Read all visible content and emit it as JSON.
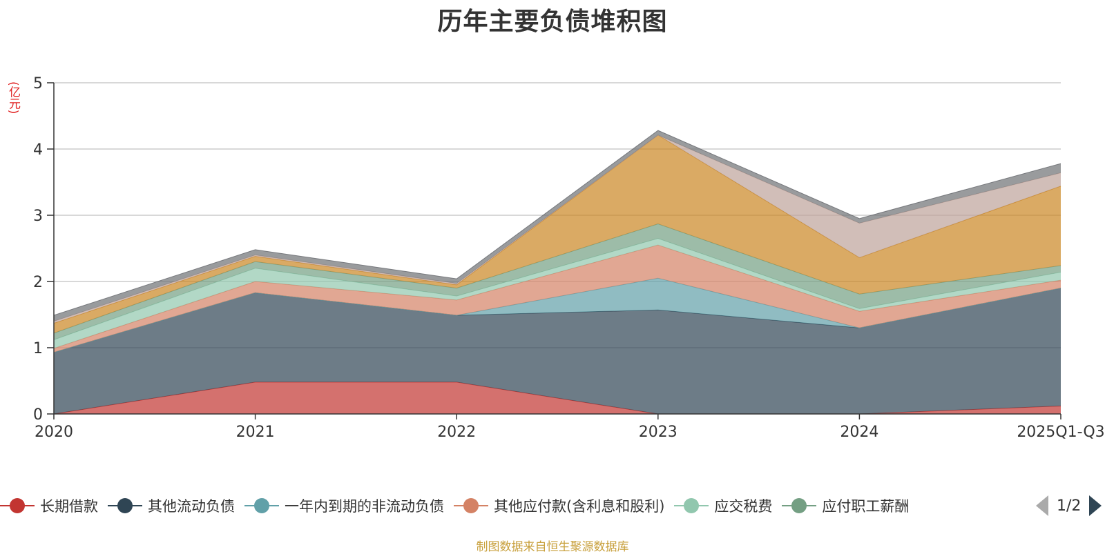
{
  "chart_data": {
    "type": "area",
    "stacked": true,
    "title": "历年主要负债堆积图",
    "ylabel": "(亿元)",
    "xlabel": "",
    "categories": [
      "2020",
      "2021",
      "2022",
      "2023",
      "2024",
      "2025Q1-Q3"
    ],
    "ylim": [
      0,
      5
    ],
    "yticks": [
      0,
      1,
      2,
      3,
      4,
      5
    ],
    "grid": true,
    "series": [
      {
        "name": "长期借款",
        "color": "#c23531",
        "values": [
          0.0,
          0.48,
          0.48,
          0.0,
          0.0,
          0.12
        ]
      },
      {
        "name": "其他流动负债",
        "color": "#2f4554",
        "values": [
          0.93,
          1.35,
          1.01,
          1.57,
          1.3,
          1.78
        ]
      },
      {
        "name": "一年内到期的非流动负债",
        "color": "#61a0a8",
        "values": [
          0.0,
          0.0,
          0.0,
          0.48,
          0.0,
          0.0
        ]
      },
      {
        "name": "其他应付款(含利息和股利)",
        "color": "#d48265",
        "values": [
          0.06,
          0.17,
          0.23,
          0.5,
          0.25,
          0.12
        ]
      },
      {
        "name": "应交税费",
        "color": "#91c7ae",
        "values": [
          0.13,
          0.2,
          0.06,
          0.1,
          0.04,
          0.12
        ]
      },
      {
        "name": "应付职工薪酬",
        "color": "#749f83",
        "values": [
          0.1,
          0.1,
          0.12,
          0.22,
          0.22,
          0.1
        ]
      },
      {
        "name": "",
        "color": "#ca8622",
        "values": [
          0.15,
          0.08,
          0.05,
          1.34,
          0.55,
          1.2
        ]
      },
      {
        "name": "",
        "color": "#bda29a",
        "values": [
          0.03,
          0.02,
          0.02,
          0.0,
          0.52,
          0.2
        ]
      },
      {
        "name": "",
        "color": "#6e7074",
        "values": [
          0.09,
          0.08,
          0.07,
          0.07,
          0.07,
          0.14
        ]
      }
    ]
  },
  "legend": {
    "page_indicator": "1/2"
  },
  "source_note": "制图数据来自恒生聚源数据库",
  "colors": {
    "axis": "#333333",
    "grid": "#cccccc",
    "unit_label": "#e02020",
    "source_note": "#c8a03c"
  }
}
